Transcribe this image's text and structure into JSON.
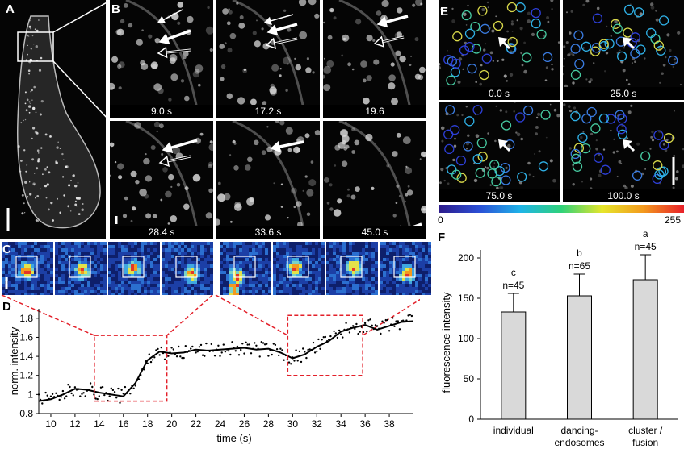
{
  "panel_labels": {
    "A": "A",
    "B": "B",
    "C": "C",
    "D": "D",
    "E": "E",
    "F": "F"
  },
  "panel_b": {
    "times": [
      "9.0 s",
      "17.2 s",
      "19.6",
      "28.4 s",
      "33.6 s",
      "45.0 s"
    ]
  },
  "panel_e": {
    "times": [
      "0.0 s",
      "25.0 s",
      "75.0 s",
      "100.0 s"
    ],
    "colorbar_min": "0",
    "colorbar_max": "255"
  },
  "chart_data": [
    {
      "panel": "D",
      "type": "line",
      "xlabel": "time (s)",
      "ylabel": "norm. intensity",
      "xlim": [
        9,
        40
      ],
      "ylim": [
        0.8,
        1.9
      ],
      "xticks": [
        10,
        12,
        14,
        16,
        18,
        20,
        22,
        24,
        26,
        28,
        30,
        32,
        34,
        36,
        38
      ],
      "yticks": [
        0.8,
        1,
        1.2,
        1.4,
        1.6,
        1.8
      ],
      "x": [
        9,
        10,
        11,
        12,
        13,
        14,
        15,
        16,
        17,
        18,
        19,
        20,
        21,
        22,
        23,
        24,
        25,
        26,
        27,
        28,
        29,
        30,
        31,
        32,
        33,
        34,
        35,
        36,
        37,
        38,
        39,
        40
      ],
      "y": [
        0.93,
        0.95,
        1.0,
        1.06,
        1.05,
        1.02,
        1.0,
        0.98,
        1.12,
        1.36,
        1.45,
        1.43,
        1.44,
        1.47,
        1.46,
        1.47,
        1.48,
        1.49,
        1.47,
        1.48,
        1.44,
        1.38,
        1.42,
        1.5,
        1.56,
        1.66,
        1.7,
        1.73,
        1.68,
        1.72,
        1.76,
        1.77
      ],
      "highlight_regions": [
        [
          13.6,
          19.6
        ],
        [
          29.6,
          35.8
        ]
      ]
    },
    {
      "panel": "F",
      "type": "bar",
      "ylabel": "fluorescence intensity",
      "categories": [
        "individual",
        "dancing-endosomes",
        "cluster / fusion"
      ],
      "category_lines": [
        [
          "individual"
        ],
        [
          "dancing-",
          "endosomes"
        ],
        [
          "cluster /",
          "fusion"
        ]
      ],
      "values": [
        133,
        153,
        173
      ],
      "errors": [
        23,
        27,
        31
      ],
      "n_labels": [
        "n=45",
        "n=65",
        "n=45"
      ],
      "letters": [
        "c",
        "b",
        "a"
      ],
      "ylim": [
        0,
        220
      ],
      "yticks": [
        0,
        50,
        100,
        150,
        200
      ]
    }
  ]
}
